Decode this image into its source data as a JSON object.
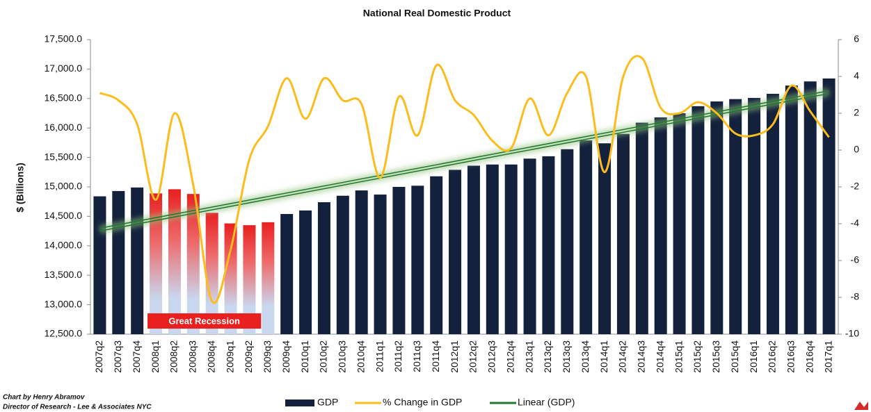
{
  "chart_data": {
    "type": "bar",
    "title": "National Real Domestic Product",
    "y_label": "$ (Billions)",
    "categories": [
      "2007q2",
      "2007q3",
      "2007q4",
      "2008q1",
      "2008q2",
      "2008q3",
      "2008q4",
      "2009q1",
      "2009q2",
      "2009q3",
      "2009q4",
      "2010q1",
      "2010q2",
      "2010q3",
      "2010q4",
      "2011q1",
      "2011q2",
      "2011q3",
      "2011q4",
      "2012q1",
      "2012q2",
      "2012q3",
      "2012q4",
      "2013q1",
      "2013q2",
      "2013q3",
      "2013q4",
      "2014q1",
      "2014q2",
      "2014q3",
      "2014q4",
      "2015q1",
      "2015q2",
      "2015q3",
      "2015q4",
      "2016q1",
      "2016q2",
      "2016q3",
      "2016q4",
      "2017q1"
    ],
    "series": [
      {
        "name": "GDP",
        "color": "#14213d",
        "values": [
          14840,
          14930,
          14990,
          14890,
          14960,
          14880,
          14560,
          14380,
          14350,
          14400,
          14540,
          14600,
          14740,
          14850,
          14940,
          14870,
          15000,
          15020,
          15180,
          15290,
          15360,
          15380,
          15380,
          15480,
          15520,
          15640,
          15790,
          15740,
          15900,
          16090,
          16180,
          16250,
          16370,
          16450,
          16490,
          16510,
          16580,
          16720,
          16790,
          16840
        ]
      },
      {
        "name": "% Change in GDP",
        "color": "#fbbc1c",
        "axis": "y2",
        "values": [
          3.1,
          2.7,
          1.4,
          -2.7,
          2.0,
          -1.9,
          -8.2,
          -5.4,
          -0.5,
          1.3,
          3.9,
          1.7,
          3.9,
          2.7,
          2.5,
          -1.5,
          2.9,
          0.8,
          4.6,
          2.7,
          1.9,
          0.5,
          0.1,
          2.8,
          0.8,
          3.1,
          4.0,
          -1.2,
          4.0,
          5.0,
          2.3,
          2.0,
          2.6,
          2.0,
          0.9,
          0.8,
          1.4,
          3.5,
          2.1,
          0.7
        ]
      }
    ],
    "trendline": {
      "name": "Linear (GDP)",
      "color": "#1f7a2e",
      "of": "GDP"
    },
    "highlight": {
      "label": "Great Recession",
      "from": "2008q1",
      "to": "2009q3",
      "color": "#e82020"
    },
    "ylim": [
      12500,
      17500
    ],
    "yticks": [
      {
        "value": 12500,
        "label": "12,500.0"
      },
      {
        "value": 13000,
        "label": "13,000.0"
      },
      {
        "value": 13500,
        "label": "13,500.0"
      },
      {
        "value": 14000,
        "label": "14,000.0"
      },
      {
        "value": 14500,
        "label": "14,500.0"
      },
      {
        "value": 15000,
        "label": "15,000.0"
      },
      {
        "value": 15500,
        "label": "15,500.0"
      },
      {
        "value": 16000,
        "label": "16,000.0"
      },
      {
        "value": 16500,
        "label": "16,500.0"
      },
      {
        "value": 17000,
        "label": "17,000.0"
      },
      {
        "value": 17500,
        "label": "17,500.0"
      }
    ],
    "y2lim": [
      -10,
      6
    ],
    "y2ticks": [
      -10,
      -8,
      -6,
      -4,
      -2,
      0,
      2,
      4,
      6
    ],
    "footer": [
      "Chart by Henry Abramov",
      "Director of Research - Lee & Associates NYC"
    ]
  }
}
